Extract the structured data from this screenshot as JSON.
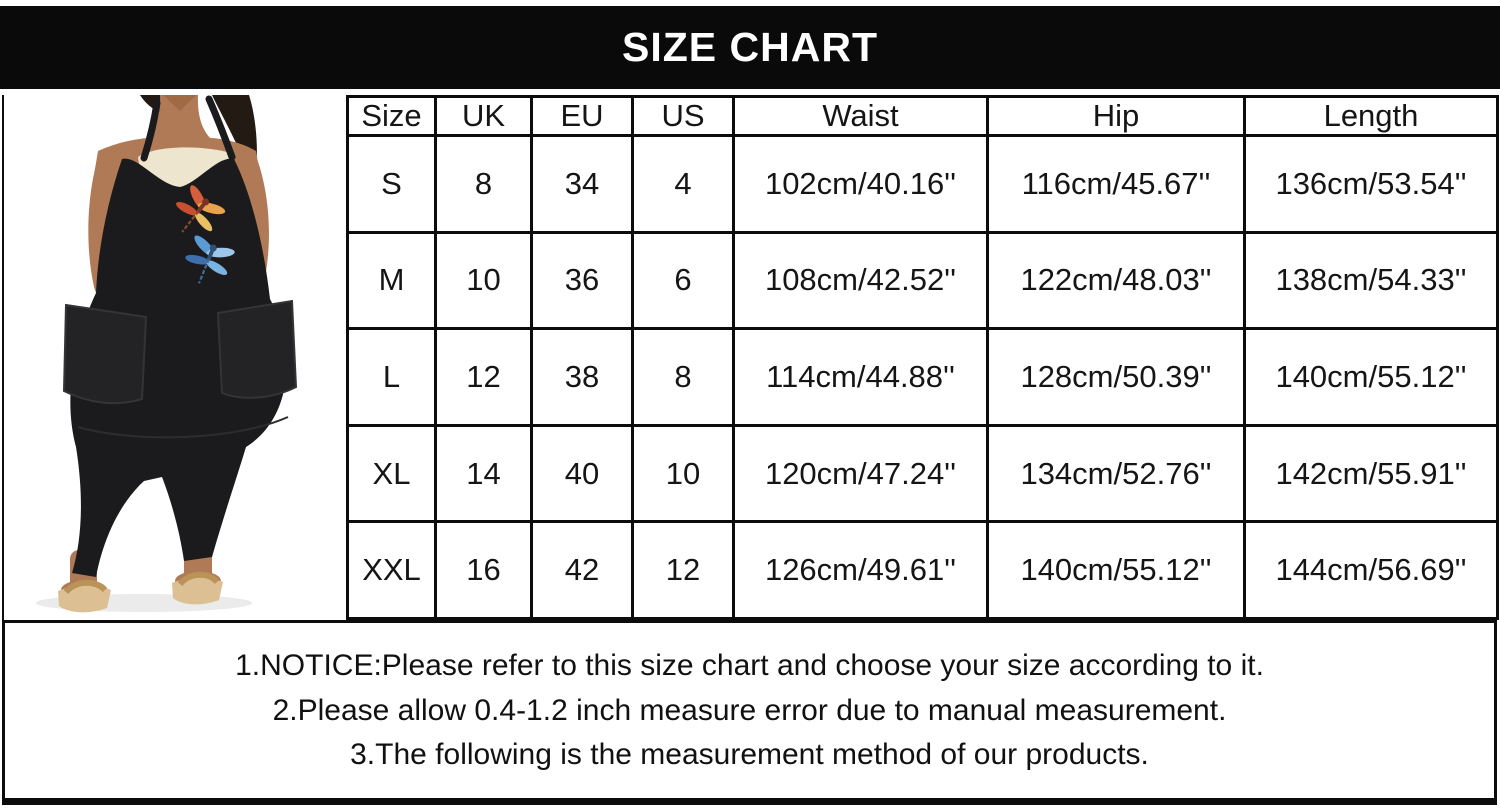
{
  "header": {
    "title": "SIZE CHART"
  },
  "product_image": {
    "description": "model wearing black sleeveless dragonfly-print jumpsuit with pockets and sandals"
  },
  "size_table": {
    "columns": [
      "Size",
      "UK",
      "EU",
      "US",
      "Waist",
      "Hip",
      "Length"
    ],
    "rows": [
      [
        "S",
        "8",
        "34",
        "4",
        "102cm/40.16''",
        "116cm/45.67''",
        "136cm/53.54''"
      ],
      [
        "M",
        "10",
        "36",
        "6",
        "108cm/42.52''",
        "122cm/48.03''",
        "138cm/54.33''"
      ],
      [
        "L",
        "12",
        "38",
        "8",
        "114cm/44.88''",
        "128cm/50.39''",
        "140cm/55.12''"
      ],
      [
        "XL",
        "14",
        "40",
        "10",
        "120cm/47.24''",
        "134cm/52.76''",
        "142cm/55.91''"
      ],
      [
        "XXL",
        "16",
        "42",
        "12",
        "126cm/49.61''",
        "140cm/55.12''",
        "144cm/56.69''"
      ]
    ]
  },
  "notice": {
    "lines": [
      "1.NOTICE:Please refer to this size chart and choose your size according to it.",
      "2.Please allow 0.4-1.2 inch measure error due to manual measurement.",
      "3.The following is the measurement method of our products."
    ]
  },
  "colors": {
    "header_bg": "#0a0a0a",
    "header_text": "#ffffff",
    "table_border": "#0c0c0c",
    "body_text": "#151515",
    "jumpsuit_black": "#1b1b1d",
    "skin_tone": "#b07a56",
    "bra_band": "#ede5cd",
    "sandal_tan": "#dcc094",
    "dragonfly_orange": "#e0823a",
    "dragonfly_blue": "#5b9bd5"
  }
}
